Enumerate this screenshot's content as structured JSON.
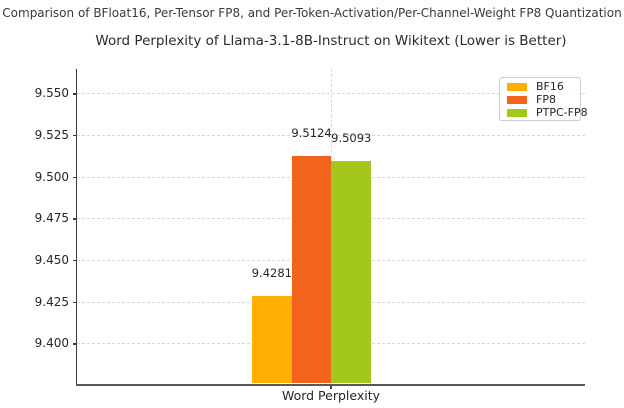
{
  "chart_data": {
    "type": "bar",
    "suptitle": "Comparison of BFloat16, Per-Tensor FP8, and Per-Token-Activation/Per-Channel-Weight FP8 Quantization",
    "title": "Word Perplexity of Llama-3.1-8B-Instruct on Wikitext (Lower is Better)",
    "xlabel": "Word Perplexity",
    "ylabel": "",
    "categories": [
      "Word Perplexity"
    ],
    "series": [
      {
        "name": "BF16",
        "color": "#FFAF00",
        "values": [
          9.4281
        ],
        "value_label": "9.4281"
      },
      {
        "name": "FP8",
        "color": "#F2641C",
        "values": [
          9.5124
        ],
        "value_label": "9.5124"
      },
      {
        "name": "PTPC-FP8",
        "color": "#A3C71D",
        "values": [
          9.5093
        ],
        "value_label": "9.5093"
      }
    ],
    "yticks": [
      9.4,
      9.425,
      9.45,
      9.475,
      9.5,
      9.525,
      9.55
    ],
    "ytick_labels": [
      "9.400",
      "9.425",
      "9.450",
      "9.475",
      "9.500",
      "9.525",
      "9.550"
    ],
    "ylim": [
      9.3758,
      9.5645
    ],
    "grid": true,
    "legend_position": "upper right",
    "note": "Lower is Better"
  }
}
